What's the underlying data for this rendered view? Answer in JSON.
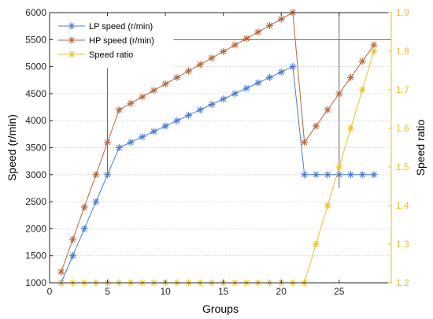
{
  "chart_data": {
    "type": "line",
    "xlabel": "Groups",
    "ylabel_left": "Speed (r/min)",
    "ylabel_right": "Speed ratio",
    "xlim": [
      0,
      29.5
    ],
    "ylim_left": [
      1000,
      6000
    ],
    "ylim_right": [
      1.2,
      1.9
    ],
    "x_ticks": [
      0,
      5,
      10,
      15,
      20,
      25
    ],
    "y_ticks_left": [
      1000,
      1500,
      2000,
      2500,
      3000,
      3500,
      4000,
      4500,
      5000,
      5500,
      6000
    ],
    "y_ticks_right": [
      "1.2",
      "1.3",
      "1.4",
      "1.5",
      "1.6",
      "1.7",
      "1.8",
      "1.9"
    ],
    "grid": "dotted horizontal at left-axis ticks; solid reference lines at x=5, x=25 and speed 5500",
    "legend_position": "top-left",
    "x": [
      1,
      2,
      3,
      4,
      5,
      6,
      7,
      8,
      9,
      10,
      11,
      12,
      13,
      14,
      15,
      16,
      17,
      18,
      19,
      20,
      21,
      22,
      23,
      24,
      25,
      26,
      27,
      28
    ],
    "series": [
      {
        "name": "LP speed (r/min)",
        "axis": "left",
        "color": "#4a7bd0",
        "values": [
          1000,
          1500,
          2000,
          2500,
          3000,
          3500,
          3600,
          3700,
          3800,
          3900,
          4000,
          4100,
          4200,
          4300,
          4400,
          4500,
          4600,
          4700,
          4800,
          4900,
          5000,
          3000,
          3000,
          3000,
          3000,
          3000,
          3000,
          3000
        ]
      },
      {
        "name": "HP speed (r/min)",
        "axis": "left",
        "color": "#b5653a",
        "values": [
          1200,
          1800,
          2400,
          3000,
          3600,
          4200,
          4320,
          4440,
          4560,
          4680,
          4800,
          4920,
          5040,
          5160,
          5280,
          5400,
          5520,
          5640,
          5760,
          5880,
          6000,
          3600,
          3900,
          4200,
          4500,
          4800,
          5100,
          5400
        ]
      },
      {
        "name": "Speed ratio",
        "axis": "right",
        "color": "#e6c229",
        "values": [
          1.2,
          1.2,
          1.2,
          1.2,
          1.2,
          1.2,
          1.2,
          1.2,
          1.2,
          1.2,
          1.2,
          1.2,
          1.2,
          1.2,
          1.2,
          1.2,
          1.2,
          1.2,
          1.2,
          1.2,
          1.2,
          1.2,
          1.3,
          1.4,
          1.5,
          1.6,
          1.7,
          1.8
        ]
      }
    ]
  },
  "colors": {
    "lp": "#4a7bd0",
    "hp": "#b5653a",
    "ratio": "#e6c229",
    "right_axis": "#e6c229",
    "grid": "#c8c8c8",
    "reference": "#555555"
  }
}
